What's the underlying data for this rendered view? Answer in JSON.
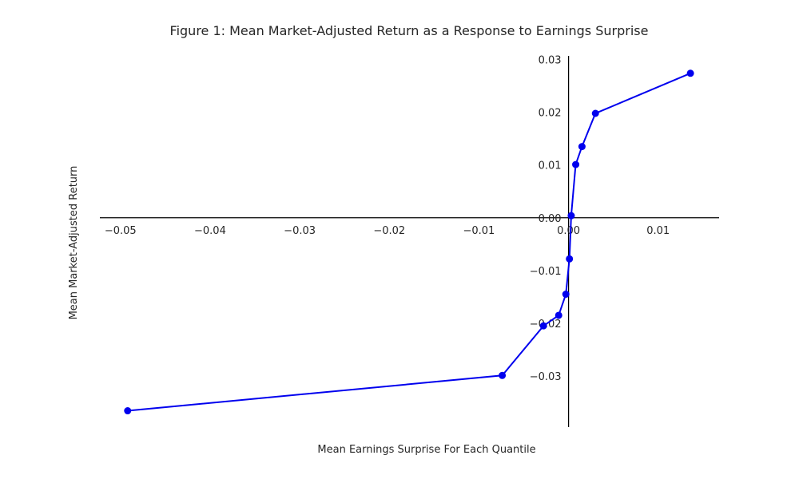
{
  "chart_data": {
    "type": "line",
    "title": "Figure 1: Mean Market-Adjusted Return as a Response to Earnings Surprise",
    "xlabel": "Mean Earnings Surprise For Each Quantile",
    "ylabel": "Mean Market-Adjusted Return",
    "xlim": [
      -0.0523,
      0.0168
    ],
    "ylim": [
      -0.0397,
      0.0307
    ],
    "grid": false,
    "spines": "centered-at-zero",
    "x_ticks": [
      -0.05,
      -0.04,
      -0.03,
      -0.02,
      -0.01,
      0.0,
      0.01
    ],
    "x_tick_labels": [
      "−0.05",
      "−0.04",
      "−0.03",
      "−0.02",
      "−0.01",
      "0.00",
      "0.01"
    ],
    "y_ticks": [
      0.03,
      0.02,
      0.01,
      0.0,
      -0.01,
      -0.02,
      -0.03
    ],
    "y_tick_labels": [
      "0.03",
      "0.02",
      "0.01",
      "0.00",
      "−0.01",
      "−0.02",
      "−0.03"
    ],
    "colors": {
      "series": "#0000ee",
      "axis": "#000000",
      "text": "#262626"
    },
    "series": [
      {
        "marker": "circle",
        "x": [
          -0.0492,
          -0.0074,
          -0.0028,
          -0.0011,
          -0.0003,
          0.0001,
          0.0003,
          0.0008,
          0.0015,
          0.003,
          0.0136
        ],
        "y": [
          -0.0366,
          -0.0299,
          -0.0205,
          -0.0185,
          -0.0145,
          -0.0078,
          0.0004,
          0.0101,
          0.0135,
          0.0198,
          0.0274
        ]
      }
    ]
  }
}
